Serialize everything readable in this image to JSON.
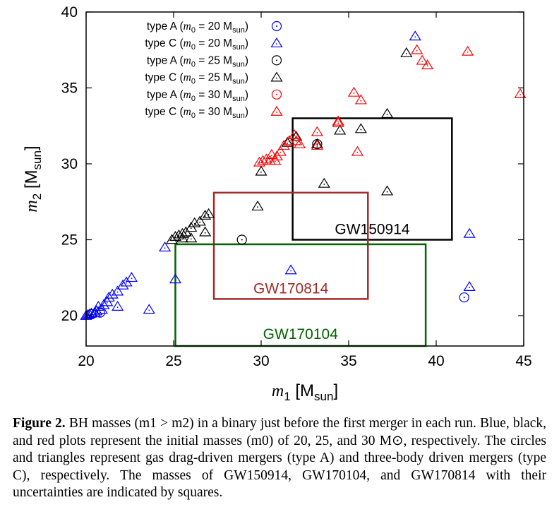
{
  "chart_data": {
    "type": "scatter",
    "xlabel": {
      "var": "m",
      "sub": "1",
      "unit": "M",
      "unit_sub": "sun"
    },
    "ylabel": {
      "var": "m",
      "sub": "2",
      "unit": "M",
      "unit_sub": "sun"
    },
    "xlim": [
      20,
      45
    ],
    "ylim": [
      18,
      40
    ],
    "xticks": [
      20,
      25,
      30,
      35,
      40,
      45
    ],
    "yticks": [
      20,
      25,
      30,
      35,
      40
    ],
    "grid": false,
    "legend_position": "top-left",
    "legend_prefix": "type",
    "series": [
      {
        "name": "type A (m0 = 20 Msun)",
        "label_type": "A",
        "label_m0": "20",
        "marker": "circle",
        "color": "#0000ff",
        "points": [
          [
            20.3,
            20.1
          ],
          [
            20.8,
            20.2
          ],
          [
            41.6,
            21.2
          ]
        ]
      },
      {
        "name": "type C (m0 = 20 Msun)",
        "label_type": "C",
        "label_m0": "20",
        "marker": "triangle",
        "color": "#0000ff",
        "points": [
          [
            20.0,
            20.0
          ],
          [
            20.1,
            20.05
          ],
          [
            20.2,
            20.1
          ],
          [
            20.3,
            20.15
          ],
          [
            20.5,
            20.2
          ],
          [
            20.6,
            20.3
          ],
          [
            20.9,
            20.4
          ],
          [
            20.7,
            20.6
          ],
          [
            21.0,
            20.7
          ],
          [
            21.2,
            20.9
          ],
          [
            21.3,
            21.2
          ],
          [
            21.5,
            21.4
          ],
          [
            21.8,
            21.6
          ],
          [
            22.1,
            22.0
          ],
          [
            22.3,
            22.2
          ],
          [
            22.6,
            22.5
          ],
          [
            21.8,
            20.6
          ],
          [
            23.6,
            20.4
          ],
          [
            24.5,
            24.5
          ],
          [
            25.1,
            22.4
          ],
          [
            31.7,
            23.0
          ],
          [
            38.8,
            38.4
          ],
          [
            41.9,
            25.4
          ],
          [
            41.9,
            21.9
          ]
        ]
      },
      {
        "name": "type A (m0 = 25 Msun)",
        "label_type": "A",
        "label_m0": "25",
        "marker": "circle",
        "color": "#000000",
        "points": [
          [
            28.9,
            25.0
          ],
          [
            33.2,
            31.3
          ]
        ]
      },
      {
        "name": "type C (m0 = 25 Msun)",
        "label_type": "C",
        "label_m0": "25",
        "marker": "triangle",
        "color": "#000000",
        "points": [
          [
            24.9,
            25.0
          ],
          [
            25.1,
            25.2
          ],
          [
            25.3,
            25.3
          ],
          [
            25.5,
            25.4
          ],
          [
            25.7,
            25.5
          ],
          [
            26.0,
            25.8
          ],
          [
            26.2,
            26.1
          ],
          [
            26.5,
            26.2
          ],
          [
            26.8,
            26.6
          ],
          [
            27.0,
            26.7
          ],
          [
            26.8,
            25.5
          ],
          [
            26.0,
            25.1
          ],
          [
            25.5,
            25.1
          ],
          [
            29.8,
            27.2
          ],
          [
            30.0,
            29.5
          ],
          [
            31.5,
            31.4
          ],
          [
            32.0,
            31.8
          ],
          [
            33.2,
            31.3
          ],
          [
            33.6,
            28.7
          ],
          [
            34.5,
            32.2
          ],
          [
            35.7,
            32.3
          ],
          [
            37.2,
            33.3
          ],
          [
            37.2,
            28.2
          ],
          [
            38.3,
            37.3
          ]
        ]
      },
      {
        "name": "type A (m0 = 30 Msun)",
        "label_type": "A",
        "label_m0": "30",
        "marker": "circle",
        "color": "#ff0000",
        "points": []
      },
      {
        "name": "type C (m0 = 30 Msun)",
        "label_type": "C",
        "label_m0": "30",
        "marker": "triangle",
        "color": "#ff0000",
        "points": [
          [
            29.9,
            30.1
          ],
          [
            30.1,
            30.2
          ],
          [
            30.3,
            30.3
          ],
          [
            30.5,
            30.2
          ],
          [
            30.6,
            30.6
          ],
          [
            30.9,
            30.5
          ],
          [
            30.8,
            30.2
          ],
          [
            31.1,
            30.8
          ],
          [
            31.3,
            31.2
          ],
          [
            31.6,
            31.5
          ],
          [
            31.9,
            31.9
          ],
          [
            32.2,
            31.3
          ],
          [
            32.0,
            31.5
          ],
          [
            33.2,
            32.1
          ],
          [
            33.2,
            31.2
          ],
          [
            34.4,
            32.8
          ],
          [
            34.4,
            32.7
          ],
          [
            35.5,
            30.8
          ],
          [
            35.3,
            34.7
          ],
          [
            35.7,
            34.2
          ],
          [
            38.9,
            37.5
          ],
          [
            39.2,
            36.8
          ],
          [
            39.5,
            36.5
          ],
          [
            41.8,
            37.4
          ],
          [
            44.8,
            34.6
          ]
        ]
      }
    ],
    "boxes": [
      {
        "label": "GW150914",
        "color": "#000000",
        "x": [
          31.8,
          40.9
        ],
        "y": [
          25.0,
          33.0
        ]
      },
      {
        "label": "GW170814",
        "color": "#a52a2a",
        "x": [
          27.3,
          36.1
        ],
        "y": [
          21.1,
          28.1
        ]
      },
      {
        "label": "GW170104",
        "color": "#006400",
        "x": [
          25.1,
          39.4
        ],
        "y": [
          18.0,
          24.7
        ]
      }
    ]
  },
  "caption": {
    "bold": "Figure 2.",
    "text": "BH masses (m1 > m2) in a binary just before the first merger in each run. Blue, black, and red plots represent the initial masses (m0) of 20, 25, and 30 M⊙, respectively. The circles and triangles represent gas drag-driven mergers (type A) and three-body driven mergers (type C), respectively. The masses of GW150914, GW170104, and GW170814 with their uncertainties are indicated by squares."
  }
}
